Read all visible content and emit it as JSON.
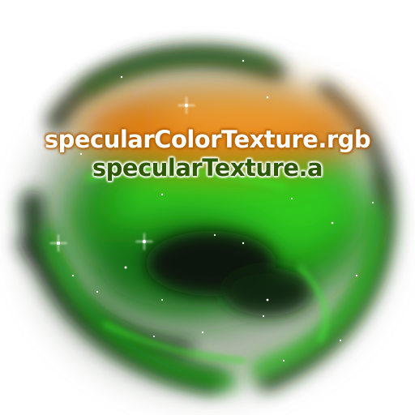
{
  "scene": {
    "background_color": "#ffffff",
    "nebula_colors": {
      "green_bright": "#2ec81c",
      "green_dark": "#0a3a08",
      "orange": "#e07a10",
      "black": "#0a0f08"
    }
  },
  "labels": {
    "rgb": "specularColorTexture.rgb",
    "alpha": "specularTexture.a"
  }
}
